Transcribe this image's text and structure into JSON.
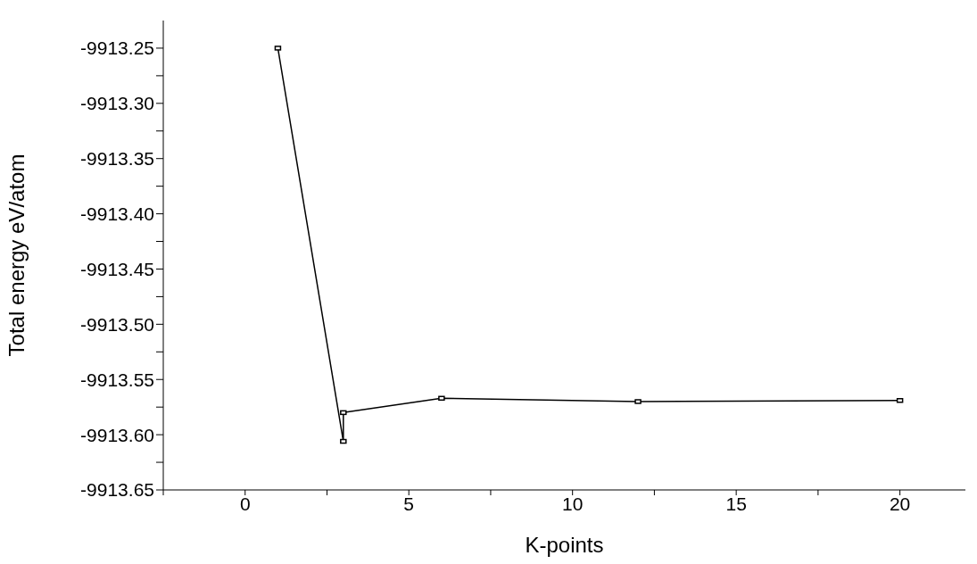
{
  "chart_data": {
    "type": "line",
    "xlabel": "K-points",
    "ylabel": "Total energy eV/atom",
    "x": [
      1,
      3,
      3,
      6,
      12,
      20
    ],
    "series": [
      {
        "color": "#000000",
        "values": [
          -9913.25,
          -9913.606,
          -9913.58,
          -9913.567,
          -9913.57,
          -9913.569
        ]
      }
    ],
    "xlim": [
      -2.5,
      22
    ],
    "xticks": [
      {
        "value": -2.5,
        "label": null
      },
      0,
      {
        "value": 2.5,
        "label": null
      },
      5,
      {
        "value": 7.5,
        "label": null
      },
      10,
      {
        "value": 12.5,
        "label": null
      },
      15,
      {
        "value": 17.5,
        "label": null
      },
      20
    ],
    "ylim": [
      -9913.65,
      -9913.225
    ],
    "yticks": [
      {
        "value": -9913.65,
        "label": "-9913.65"
      },
      {
        "value": -9913.625,
        "label": null
      },
      {
        "value": -9913.6,
        "label": "-9913.60"
      },
      {
        "value": -9913.575,
        "label": null
      },
      {
        "value": -9913.55,
        "label": "-9913.55"
      },
      {
        "value": -9913.525,
        "label": null
      },
      {
        "value": -9913.5,
        "label": "-9913.50"
      },
      {
        "value": -9913.475,
        "label": null
      },
      {
        "value": -9913.45,
        "label": "-9913.45"
      },
      {
        "value": -9913.425,
        "label": null
      },
      {
        "value": -9913.4,
        "label": "-9913.40"
      },
      {
        "value": -9913.375,
        "label": null
      },
      {
        "value": -9913.35,
        "label": "-9913.35"
      },
      {
        "value": -9913.325,
        "label": null
      },
      {
        "value": -9913.3,
        "label": "-9913.30"
      },
      {
        "value": -9913.275,
        "label": null
      },
      -9913.25
    ],
    "grid": false,
    "legend": false,
    "marker": "square",
    "line_style": "solid"
  }
}
